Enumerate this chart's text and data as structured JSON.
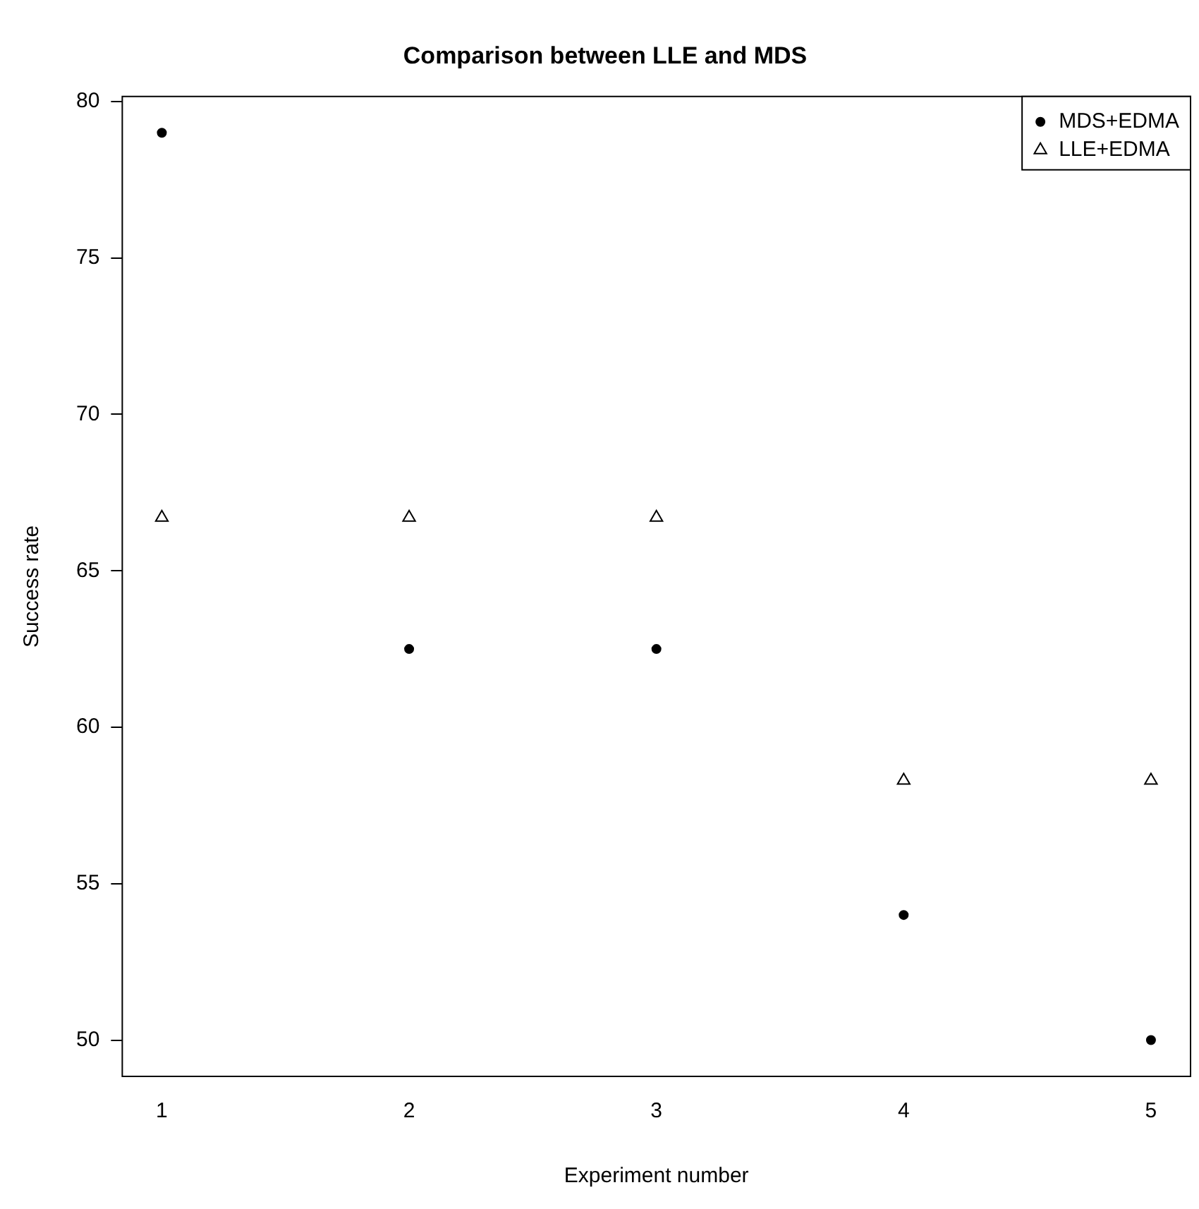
{
  "chart_data": {
    "type": "scatter",
    "title": "Comparison between LLE and MDS",
    "xlabel": "Experiment number",
    "ylabel": "Success rate",
    "x": [
      1,
      2,
      3,
      4,
      5
    ],
    "series": [
      {
        "name": "MDS+EDMA",
        "color": "#000000",
        "marker": "circle",
        "values": [
          79,
          62.5,
          62.5,
          54,
          50
        ]
      },
      {
        "name": "LLE+EDMA",
        "color": "#000000",
        "marker": "triangle",
        "values": [
          66.7,
          66.7,
          66.7,
          58.3,
          58.3
        ]
      }
    ],
    "xlim": [
      0.84,
      5.16
    ],
    "ylim": [
      48.84,
      80.16
    ],
    "xticks": [
      1,
      2,
      3,
      4,
      5
    ],
    "yticks": [
      50,
      55,
      60,
      65,
      70,
      75,
      80
    ],
    "legend": "top right",
    "grid": false
  }
}
